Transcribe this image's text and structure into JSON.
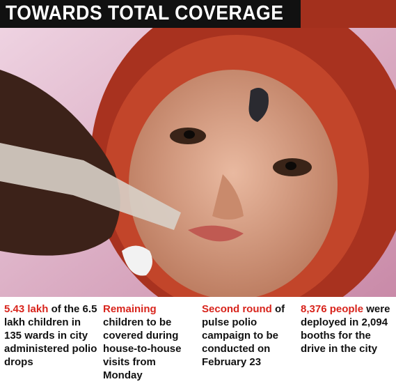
{
  "header": {
    "title": "TOWARDS TOTAL COVERAGE"
  },
  "facts": [
    {
      "highlight": "5.43 lakh",
      "text": "of the 6.5 lakh children in 135 wards in city administered polio drops"
    },
    {
      "highlight": "Remaining",
      "text": "children to be covered during house-to-house visits from Monday"
    },
    {
      "highlight": "Second round",
      "text": "of pulse polio campaign to be conducted on February 23"
    },
    {
      "highlight": "8,376 people",
      "text": "were deployed in 2,094 booths for the drive in the city"
    }
  ]
}
